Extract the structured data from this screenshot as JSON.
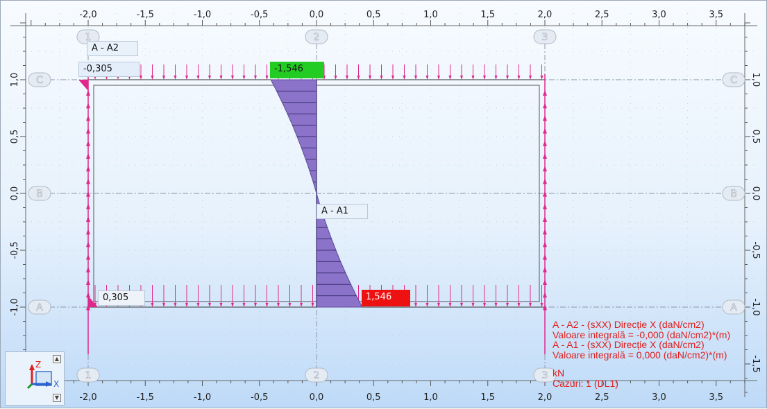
{
  "x_axis_ticks": [
    "-2,0",
    "-1,5",
    "-1,0",
    "-0,5",
    "0,0",
    "0,5",
    "1,0",
    "1,5",
    "2,0",
    "2,5",
    "3,0",
    "3,5"
  ],
  "y_axis_ticks": [
    "1,0",
    "0,5",
    "0,0",
    "-0,5",
    "-1,0",
    "-1,5"
  ],
  "grid_columns": [
    "1",
    "2",
    "3"
  ],
  "grid_rows": [
    "C",
    "B",
    "A"
  ],
  "panel_labels": {
    "a2": "A - A2",
    "a1": "A - A1"
  },
  "values": {
    "a2_top": "-0,305",
    "a2_bottom": "0,305",
    "a1_top": "-1,546",
    "a1_bottom": "1,546"
  },
  "legend": {
    "line1": "A - A2 - (sXX) Direcție X (daN/cm2)",
    "line2": "Valoare integrală = -0,000 (daN/cm2)*(m)",
    "line3": "A - A1 - (sXX) Direcție X (daN/cm2)",
    "line4": "Valoare integrală = 0,000 (daN/cm2)*(m)",
    "unit": "kN",
    "cases": "Cazuri: 1 (DL1)"
  },
  "axis_widget": {
    "z_label": "Z",
    "x_label": "X"
  },
  "colors": {
    "diagram_fill": "#8a73c8",
    "load_arrows": "#e0288c",
    "legend_text": "#e0201e",
    "negative_tag": "#22cc22",
    "positive_tag": "#ee1111"
  }
}
